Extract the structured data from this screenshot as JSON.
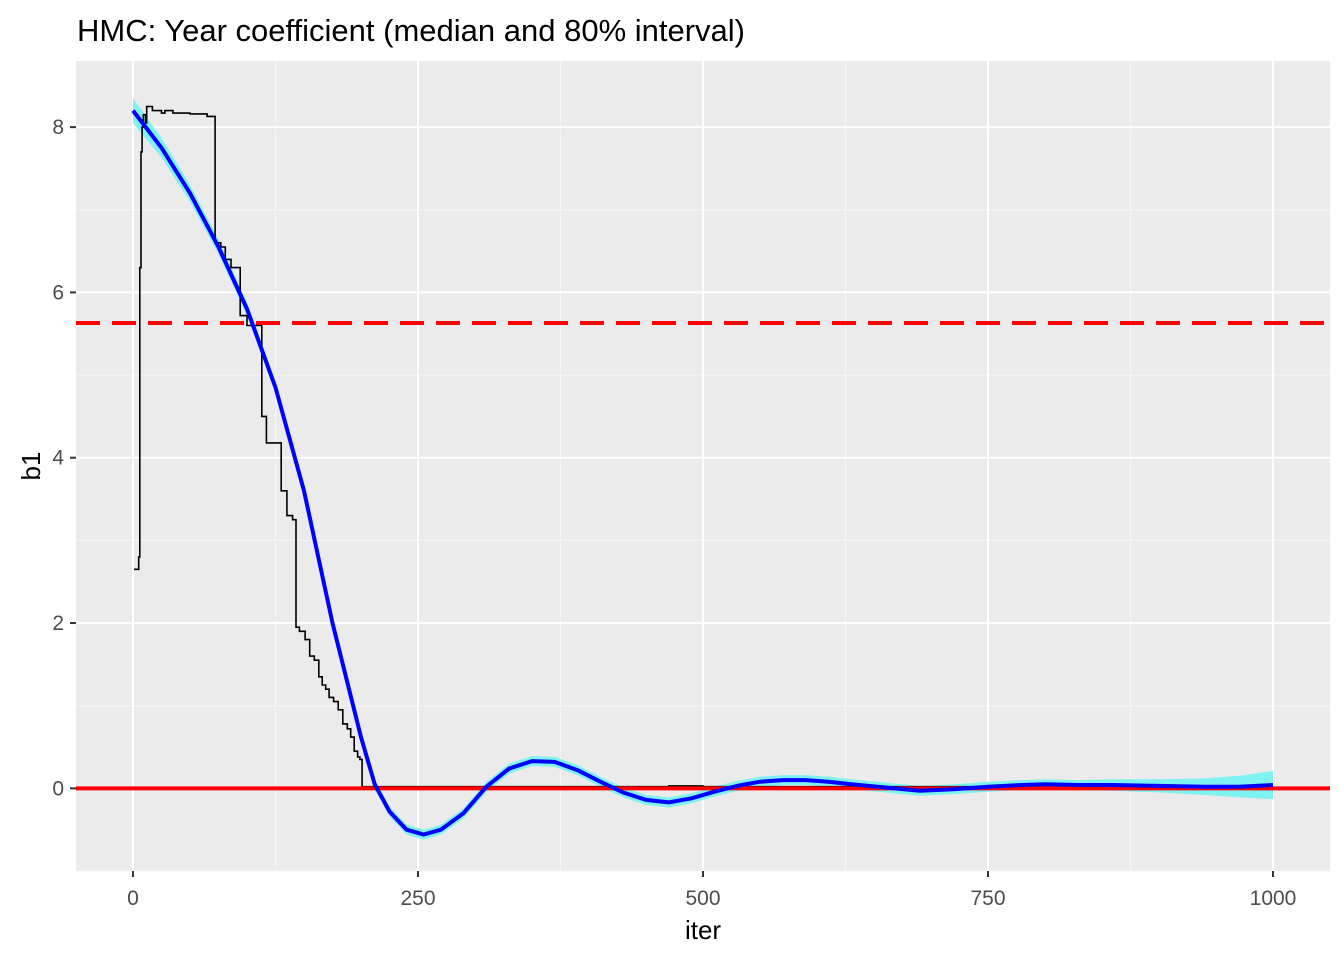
{
  "chart_data": {
    "type": "line",
    "title": "HMC: Year coefficient (median and 80% interval)",
    "xlabel": "iter",
    "ylabel": "b1",
    "xlim": [
      -50,
      1050
    ],
    "ylim": [
      -1.0,
      8.8
    ],
    "x_ticks": [
      0,
      250,
      500,
      750,
      1000
    ],
    "x_tick_labels": [
      "0",
      "250",
      "500",
      "750",
      "1000"
    ],
    "y_ticks": [
      0,
      2,
      4,
      6,
      8
    ],
    "y_tick_labels": [
      "0",
      "2",
      "4",
      "6",
      "8"
    ],
    "grid": true,
    "legend": "none",
    "colors": {
      "panel": "#ebebeb",
      "grid_major": "#ffffff",
      "grid_minor": "#f5f5f5",
      "trace": "#000000",
      "smooth": "#0000ff",
      "band": "#7ff2f2",
      "reference_line": "#ff0000",
      "tick_label": "#4d4d4d"
    },
    "reference_lines": [
      {
        "y": 0,
        "style": "solid",
        "color": "#ff0000"
      },
      {
        "y": 5.63,
        "style": "dashed",
        "color": "#ff0000"
      }
    ],
    "series": [
      {
        "kind": "step-trace",
        "x": [
          1,
          5,
          6,
          7,
          8,
          9,
          11,
          12,
          17,
          21,
          25,
          28,
          35,
          50,
          65,
          72,
          77,
          81,
          86,
          91,
          94,
          100,
          113,
          117,
          130,
          135,
          140,
          143,
          146,
          151,
          155,
          159,
          163,
          166,
          169,
          172,
          176,
          180,
          184,
          188,
          191,
          194,
          197,
          199,
          201,
          205,
          300,
          400,
          470,
          500,
          1000
        ],
        "y": [
          2.65,
          2.8,
          6.3,
          7.7,
          8.0,
          8.15,
          8.05,
          8.25,
          8.2,
          8.2,
          8.17,
          8.2,
          8.17,
          8.16,
          8.13,
          6.6,
          6.55,
          6.4,
          6.3,
          6.3,
          5.72,
          5.6,
          4.5,
          4.18,
          3.6,
          3.3,
          3.25,
          1.95,
          1.9,
          1.8,
          1.6,
          1.55,
          1.35,
          1.25,
          1.2,
          1.1,
          1.05,
          0.95,
          0.78,
          0.72,
          0.62,
          0.45,
          0.38,
          0.35,
          0.02,
          0.02,
          0.02,
          0.02,
          0.03,
          0.02,
          0.02
        ]
      },
      {
        "kind": "smooth",
        "x": [
          0,
          25,
          50,
          75,
          100,
          125,
          150,
          175,
          200,
          212,
          225,
          240,
          255,
          270,
          290,
          310,
          330,
          350,
          370,
          390,
          410,
          430,
          450,
          470,
          490,
          510,
          530,
          550,
          570,
          590,
          610,
          630,
          660,
          690,
          720,
          750,
          780,
          800,
          830,
          860,
          900,
          940,
          970,
          1000
        ],
        "y": [
          8.2,
          7.75,
          7.2,
          6.55,
          5.8,
          4.85,
          3.6,
          2.0,
          0.62,
          0.05,
          -0.28,
          -0.5,
          -0.56,
          -0.5,
          -0.3,
          0.02,
          0.24,
          0.33,
          0.32,
          0.22,
          0.08,
          -0.05,
          -0.14,
          -0.17,
          -0.12,
          -0.04,
          0.03,
          0.08,
          0.1,
          0.1,
          0.08,
          0.05,
          0.01,
          -0.03,
          -0.01,
          0.02,
          0.04,
          0.05,
          0.04,
          0.04,
          0.03,
          0.02,
          0.02,
          0.04
        ],
        "band_halfwidth": [
          0.15,
          0.12,
          0.1,
          0.09,
          0.08,
          0.07,
          0.07,
          0.07,
          0.06,
          0.06,
          0.06,
          0.06,
          0.06,
          0.06,
          0.06,
          0.06,
          0.06,
          0.06,
          0.06,
          0.06,
          0.06,
          0.06,
          0.06,
          0.06,
          0.06,
          0.06,
          0.06,
          0.06,
          0.06,
          0.06,
          0.06,
          0.06,
          0.06,
          0.06,
          0.06,
          0.06,
          0.06,
          0.06,
          0.06,
          0.07,
          0.08,
          0.1,
          0.13,
          0.17
        ]
      }
    ]
  }
}
